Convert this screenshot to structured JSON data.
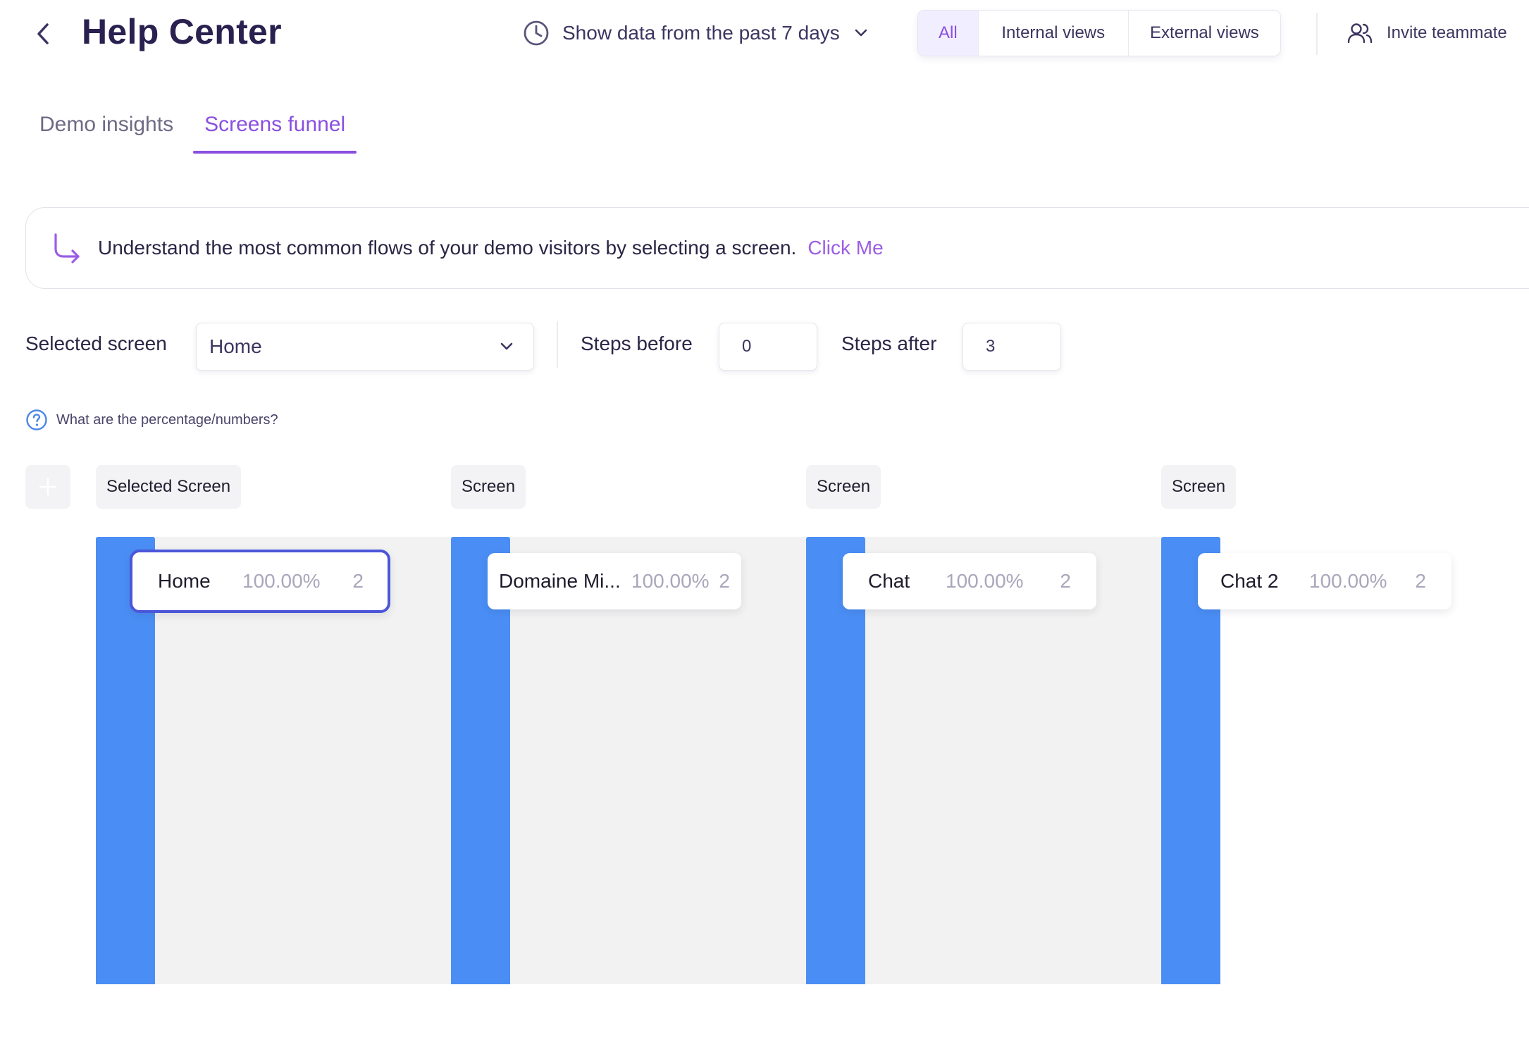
{
  "header": {
    "title": "Help Center",
    "date_range": "Show data from the past 7 days",
    "view_options": [
      "All",
      "Internal views",
      "External views"
    ],
    "active_view": "All",
    "invite_label": "Invite teammate"
  },
  "tabs": [
    {
      "label": "Demo insights",
      "active": false
    },
    {
      "label": "Screens funnel",
      "active": true
    }
  ],
  "banner": {
    "text": "Understand the most common flows of your demo visitors by selecting a screen.",
    "link": "Click Me"
  },
  "controls": {
    "selected_screen_label": "Selected screen",
    "selected_screen_value": "Home",
    "steps_before_label": "Steps before",
    "steps_before_value": "0",
    "steps_after_label": "Steps after",
    "steps_after_value": "3"
  },
  "help": {
    "text": "What are the percentage/numbers?"
  },
  "funnel": {
    "columns": [
      {
        "header": "Selected Screen",
        "screen": "Home",
        "percent": "100.00%",
        "count": "2"
      },
      {
        "header": "Screen",
        "screen": "Domaine Mi...",
        "percent": "100.00%",
        "count": "2"
      },
      {
        "header": "Screen",
        "screen": "Chat",
        "percent": "100.00%",
        "count": "2"
      },
      {
        "header": "Screen",
        "screen": "Chat 2",
        "percent": "100.00%",
        "count": "2"
      }
    ]
  },
  "colors": {
    "accent": "#8a4fe0",
    "bar": "#4a8ef5",
    "selected_border": "#4c56d9",
    "flow_band": "#f2f2f2"
  },
  "icons": [
    "chevron-left-icon",
    "clock-icon",
    "chevron-down-icon",
    "users-icon",
    "curved-arrow-icon",
    "question-circle-icon",
    "plus-icon"
  ]
}
